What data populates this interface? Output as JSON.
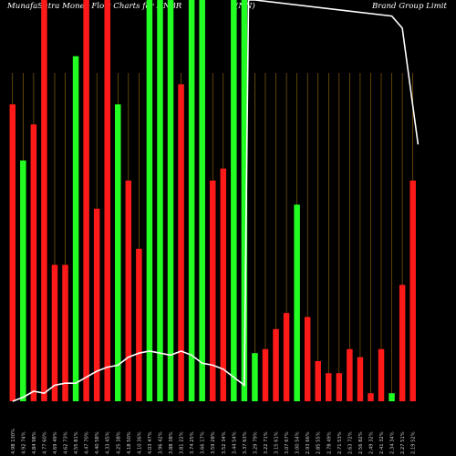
{
  "header": {
    "title_left": "MunafaSutra  Money Flow  Charts for NNBR",
    "title_mid": "(NN)",
    "title_right": "Brand Group Limit"
  },
  "colors": {
    "background": "#000000",
    "up": "#22ff22",
    "down": "#ff1a1a",
    "gridline": "#b8860b",
    "price_line": "#ffffff",
    "label": "#cccccc"
  },
  "chart_data": {
    "type": "bar",
    "title": "MunafaSutra  Money Flow  Charts for NNBR (NN) Brand Group Limit",
    "values_scale": "relative volume, 0-100",
    "bars": [
      {
        "label": "4.98 130%",
        "value": 74,
        "direction": "down"
      },
      {
        "label": "4.92 74%",
        "value": 60,
        "direction": "up"
      },
      {
        "label": "4.84 98%",
        "value": 69,
        "direction": "down"
      },
      {
        "label": "4.77 60%",
        "value": 100,
        "direction": "down"
      },
      {
        "label": "4.69 49%",
        "value": 34,
        "direction": "down"
      },
      {
        "label": "4.62 73%",
        "value": 34,
        "direction": "down"
      },
      {
        "label": "4.55 81%",
        "value": 86,
        "direction": "up"
      },
      {
        "label": "4.47 70%",
        "value": 100,
        "direction": "down"
      },
      {
        "label": "4.40 58%",
        "value": 48,
        "direction": "down"
      },
      {
        "label": "4.33 45%",
        "value": 100,
        "direction": "down"
      },
      {
        "label": "4.25 38%",
        "value": 74,
        "direction": "up"
      },
      {
        "label": "4.18 50%",
        "value": 55,
        "direction": "down"
      },
      {
        "label": "4.10 36%",
        "value": 38,
        "direction": "down"
      },
      {
        "label": "4.03 47%",
        "value": 100,
        "direction": "up"
      },
      {
        "label": "3.96 42%",
        "value": 100,
        "direction": "up"
      },
      {
        "label": "3.88 38%",
        "value": 100,
        "direction": "up"
      },
      {
        "label": "3.81 22%",
        "value": 79,
        "direction": "down"
      },
      {
        "label": "3.74 25%",
        "value": 100,
        "direction": "up"
      },
      {
        "label": "3.66 17%",
        "value": 100,
        "direction": "up"
      },
      {
        "label": "3.59 28%",
        "value": 55,
        "direction": "down"
      },
      {
        "label": "3.52 34%",
        "value": 58,
        "direction": "down"
      },
      {
        "label": "3.44 54%",
        "value": 100,
        "direction": "up"
      },
      {
        "label": "3.37 63%",
        "value": 100,
        "direction": "up"
      },
      {
        "label": "3.29 79%",
        "value": 12,
        "direction": "up"
      },
      {
        "label": "3.22 71%",
        "value": 13,
        "direction": "down"
      },
      {
        "label": "3.15 61%",
        "value": 18,
        "direction": "down"
      },
      {
        "label": "3.07 67%",
        "value": 22,
        "direction": "down"
      },
      {
        "label": "3.00 54%",
        "value": 49,
        "direction": "up"
      },
      {
        "label": "2.93 66%",
        "value": 21,
        "direction": "down"
      },
      {
        "label": "2.85 55%",
        "value": 10,
        "direction": "down"
      },
      {
        "label": "2.78 49%",
        "value": 7,
        "direction": "down"
      },
      {
        "label": "2.71 53%",
        "value": 7,
        "direction": "down"
      },
      {
        "label": "2.63 72%",
        "value": 13,
        "direction": "down"
      },
      {
        "label": "2.56 82%",
        "value": 11,
        "direction": "down"
      },
      {
        "label": "2.49 32%",
        "value": 2,
        "direction": "down"
      },
      {
        "label": "2.41 32%",
        "value": 13,
        "direction": "down"
      },
      {
        "label": "2.34 34%",
        "value": 2,
        "direction": "up"
      },
      {
        "label": "2.27 51%",
        "value": 29,
        "direction": "down"
      },
      {
        "label": "2.19 52%",
        "value": 55,
        "direction": "down"
      }
    ],
    "price_line": [
      {
        "x": 0,
        "y": 0.0
      },
      {
        "x": 1,
        "y": 1.0
      },
      {
        "x": 2,
        "y": 2.5
      },
      {
        "x": 3,
        "y": 2.0
      },
      {
        "x": 4,
        "y": 4.0
      },
      {
        "x": 5,
        "y": 4.5
      },
      {
        "x": 6,
        "y": 4.5
      },
      {
        "x": 7,
        "y": 6.0
      },
      {
        "x": 8,
        "y": 7.5
      },
      {
        "x": 9,
        "y": 8.5
      },
      {
        "x": 10,
        "y": 9.0
      },
      {
        "x": 11,
        "y": 11.0
      },
      {
        "x": 12,
        "y": 12.0
      },
      {
        "x": 13,
        "y": 12.5
      },
      {
        "x": 14,
        "y": 12.0
      },
      {
        "x": 15,
        "y": 11.5
      },
      {
        "x": 16,
        "y": 12.5
      },
      {
        "x": 17,
        "y": 11.5
      },
      {
        "x": 18,
        "y": 9.5
      },
      {
        "x": 19,
        "y": 9.0
      },
      {
        "x": 20,
        "y": 8.0
      },
      {
        "x": 21,
        "y": 6.0
      },
      {
        "x": 22,
        "y": 4.0
      },
      {
        "x": 22.4,
        "y": 100
      },
      {
        "x": 23,
        "y": 100
      },
      {
        "x": 36,
        "y": 96
      },
      {
        "x": 37,
        "y": 93
      },
      {
        "x": 38.5,
        "y": 64
      }
    ],
    "grid": true
  }
}
